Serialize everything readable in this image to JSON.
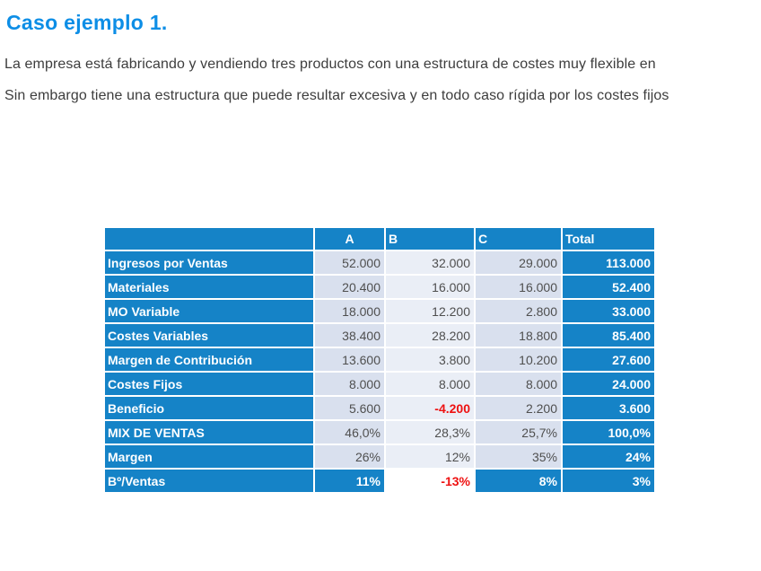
{
  "title": "Caso ejemplo 1.",
  "paragraphs": [
    "La empresa está fabricando y vendiendo tres productos con una estructura de costes muy flexible en",
    "Sin embargo tiene una estructura que puede resultar excesiva y en todo caso rígida por los costes fijos"
  ],
  "colors": {
    "title_blue": "#0d8ee6",
    "table_blue": "#1583c7",
    "cell_ac_bg": "#d9e0ee",
    "cell_b_bg": "#eaeef6",
    "value_text": "#4f4f4f",
    "negative_red": "#ee1111"
  },
  "chart_data": {
    "type": "table",
    "columns": [
      "",
      "A",
      "B",
      "C",
      "Total"
    ],
    "rows": [
      {
        "label": "Ingresos por Ventas",
        "values": [
          "52.000",
          "32.000",
          "29.000",
          "113.000"
        ]
      },
      {
        "label": "Materiales",
        "values": [
          "20.400",
          "16.000",
          "16.000",
          "52.400"
        ]
      },
      {
        "label": "MO Variable",
        "values": [
          "18.000",
          "12.200",
          "2.800",
          "33.000"
        ]
      },
      {
        "label": "Costes Variables",
        "values": [
          "38.400",
          "28.200",
          "18.800",
          "85.400"
        ]
      },
      {
        "label": "Margen de Contribución",
        "values": [
          "13.600",
          "3.800",
          "10.200",
          "27.600"
        ]
      },
      {
        "label": "Costes Fijos",
        "values": [
          "8.000",
          "8.000",
          "8.000",
          "24.000"
        ]
      },
      {
        "label": "Beneficio",
        "values": [
          "5.600",
          "-4.200",
          "2.200",
          "3.600"
        ],
        "negative_b": true
      },
      {
        "label": "MIX DE VENTAS",
        "values": [
          "46,0%",
          "28,3%",
          "25,7%",
          "100,0%"
        ]
      },
      {
        "label": "Margen",
        "values": [
          "26%",
          "12%",
          "35%",
          "24%"
        ]
      },
      {
        "label": "Bº/Ventas",
        "values": [
          "11%",
          "-13%",
          "8%",
          "3%"
        ],
        "negative_b": true,
        "solid": true
      }
    ]
  }
}
